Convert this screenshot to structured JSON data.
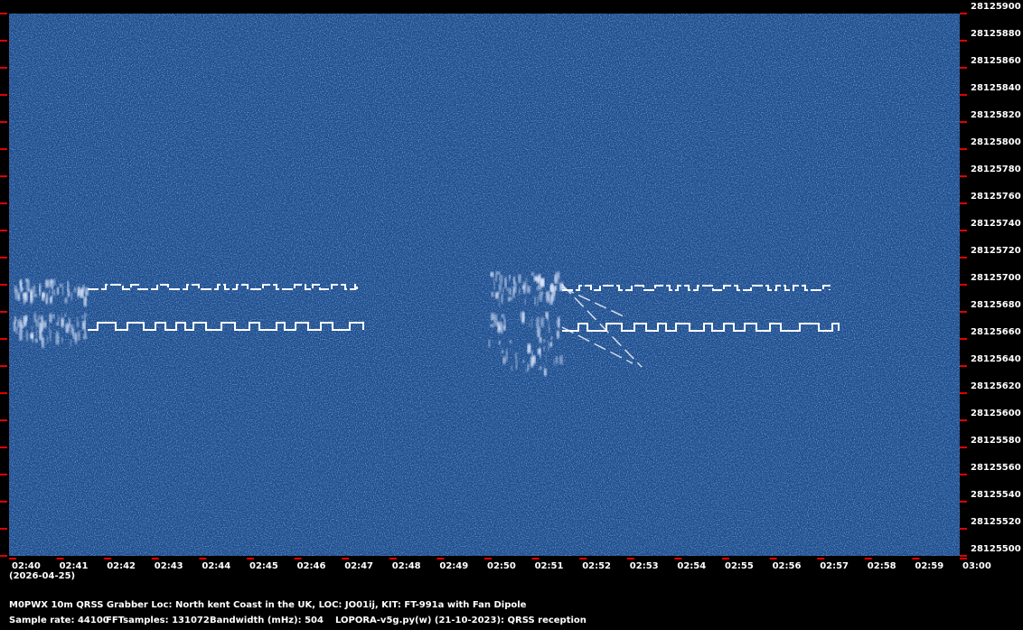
{
  "chart_data": {
    "type": "spectrogram",
    "title": "M0PWX 10m QRSS Grabber Loc: North kent Coast in the UK, LOC: JO01ij, KIT: FT-991a with Fan Dipole",
    "date": "(2026-04-25)",
    "footer": [
      "Sample rate: 44100",
      "FFTsamples: 131072",
      "Bandwidth (mHz): 504",
      "LOPORA-v5g.py(w) (21-10-2023): QRSS reception"
    ],
    "categories": [
      "02:40",
      "02:41",
      "02:42",
      "02:43",
      "02:44",
      "02:45",
      "02:46",
      "02:47",
      "02:48",
      "02:49",
      "02:50",
      "02:51",
      "02:52",
      "02:53",
      "02:54",
      "02:55",
      "02:56",
      "02:57",
      "02:58",
      "02:59",
      "03:00"
    ],
    "ylim": [
      28125500,
      28125900
    ],
    "yticks": [
      28125500,
      28125520,
      28125540,
      28125560,
      28125580,
      28125600,
      28125620,
      28125640,
      28125660,
      28125680,
      28125700,
      28125720,
      28125740,
      28125760,
      28125780,
      28125800,
      28125820,
      28125840,
      28125860,
      28125880,
      28125900
    ],
    "tick_color": "#e00000"
  }
}
